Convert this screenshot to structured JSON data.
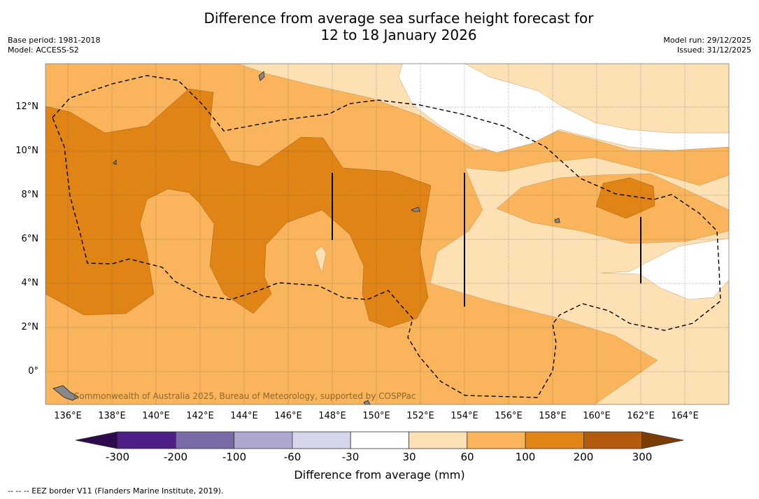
{
  "title_line1": "Difference from average sea surface height forecast for",
  "title_line2": "12 to 18 January 2026",
  "base_period": "Base period: 1981-2018",
  "model": "Model: ACCESS-S2",
  "model_run": "Model run: 29/12/2025",
  "issued": "Issued: 31/12/2025",
  "lat_labels": [
    "12°N",
    "10°N",
    "8°N",
    "6°N",
    "4°N",
    "2°N",
    "0°"
  ],
  "lon_labels": [
    "136°E",
    "138°E",
    "140°E",
    "142°E",
    "144°E",
    "146°E",
    "148°E",
    "150°E",
    "152°E",
    "154°E",
    "156°E",
    "158°E",
    "160°E",
    "162°E",
    "164°E"
  ],
  "watermark": "Commonwealth of Australia 2025, Bureau of Meteorology, supported by COSPPac",
  "colorbar": {
    "ticks": [
      "-300",
      "-200",
      "-100",
      "-60",
      "-30",
      "30",
      "60",
      "100",
      "200",
      "300"
    ],
    "colors": [
      "#2d0b4e",
      "#4d1f86",
      "#7b6aa8",
      "#aea8d0",
      "#d5d6ea",
      "#ffffff",
      "#fde0b4",
      "#f9b45c",
      "#e08416",
      "#b35a0c",
      "#7a3c05"
    ],
    "label": "Difference from average (mm)"
  },
  "footnote": "--  --  -- EEZ border V11 (Flanders Marine Institute, 2019)."
}
